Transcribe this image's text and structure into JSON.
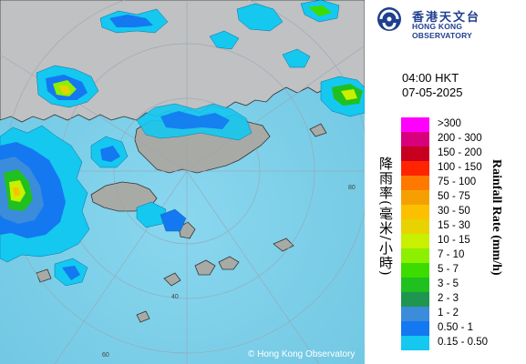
{
  "header": {
    "org_name_cn": "香港天文台",
    "org_name_en": "HONG KONG OBSERVATORY"
  },
  "timestamp": {
    "time": "04:00 HKT",
    "date": "07-05-2025"
  },
  "legend": {
    "title_cn": "降雨率(毫米/小時)",
    "title_en": "Rainfall Rate (mm/h)",
    "items": [
      {
        "label": ">300",
        "color": "#ff00ff"
      },
      {
        "label": "200 - 300",
        "color": "#d8007c"
      },
      {
        "label": "150 - 200",
        "color": "#c80020"
      },
      {
        "label": "100 - 150",
        "color": "#ff2400"
      },
      {
        "label": "75 - 100",
        "color": "#ff7800"
      },
      {
        "label": "50 - 75",
        "color": "#f5a000"
      },
      {
        "label": "30 - 50",
        "color": "#fcc000"
      },
      {
        "label": "15 - 30",
        "color": "#e8d200"
      },
      {
        "label": "10 - 15",
        "color": "#c8f000"
      },
      {
        "label": "7 - 10",
        "color": "#8cf000"
      },
      {
        "label": "5 - 7",
        "color": "#3cdc00"
      },
      {
        "label": "3 - 5",
        "color": "#20c020"
      },
      {
        "label": "2 - 3",
        "color": "#1e9650"
      },
      {
        "label": "1 - 2",
        "color": "#3c8cdc"
      },
      {
        "label": "0.50 - 1",
        "color": "#1478f0"
      },
      {
        "label": "0.15 - 0.50",
        "color": "#14c8f0"
      }
    ]
  },
  "map": {
    "range_rings": [
      "40",
      "60",
      "80"
    ],
    "copyright": "© Hong Kong Observatory",
    "land_color": "#bfc1c3",
    "sea_color": "#7ccfe8"
  }
}
